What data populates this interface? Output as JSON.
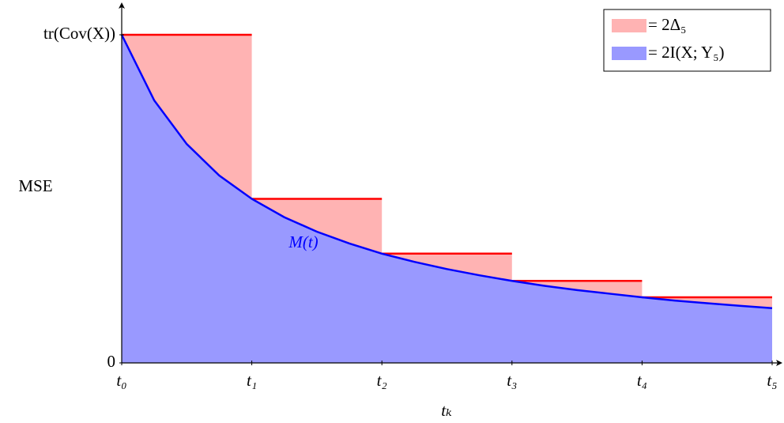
{
  "chart_data": {
    "type": "step-area",
    "x_label": "tₖ",
    "y_label": "MSE",
    "annotation": "M(t)",
    "xlim": [
      0,
      5.08
    ],
    "ylim": [
      0,
      1.09
    ],
    "xticks": [
      {
        "value": 0,
        "label": "t₀"
      },
      {
        "value": 1,
        "label": "t₁"
      },
      {
        "value": 2,
        "label": "t₂"
      },
      {
        "value": 3,
        "label": "t₃"
      },
      {
        "value": 4,
        "label": "t₄"
      },
      {
        "value": 5,
        "label": "t₅"
      }
    ],
    "yticks": [
      0,
      {
        "value": 1,
        "label": "tr(Cov(X))"
      }
    ],
    "legend": "upper-right",
    "series": [
      {
        "name": "= 2Δ₅",
        "type": "step",
        "color": "#ffb3b3",
        "line_color": "#ff0000",
        "bins": [
          0,
          1,
          2,
          3,
          4,
          5
        ],
        "values": [
          1,
          0.5,
          0.333,
          0.25,
          0.2
        ]
      },
      {
        "name": "= 2I(X; Y₅)",
        "type": "curve",
        "color": "#9999ff",
        "line_color": "#0000ff",
        "x": [
          0,
          0.25,
          0.5,
          0.75,
          1,
          1.25,
          1.5,
          1.75,
          2,
          2.25,
          2.5,
          2.75,
          3,
          3.25,
          3.5,
          3.75,
          4,
          4.25,
          4.5,
          4.75,
          5
        ],
        "values": [
          1,
          0.8,
          0.667,
          0.571,
          0.5,
          0.444,
          0.4,
          0.364,
          0.333,
          0.308,
          0.286,
          0.267,
          0.25,
          0.235,
          0.222,
          0.211,
          0.2,
          0.19,
          0.182,
          0.174,
          0.167
        ]
      }
    ]
  }
}
